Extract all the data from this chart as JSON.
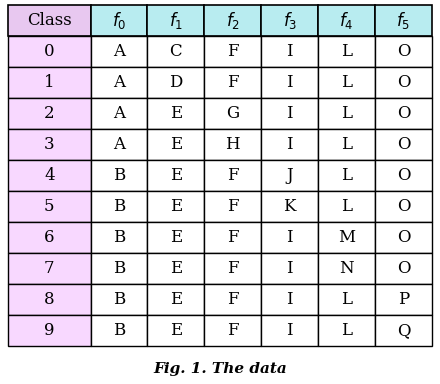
{
  "col_labels_display": [
    "Class",
    "$f_0$",
    "$f_1$",
    "$f_2$",
    "$f_3$",
    "$f_4$",
    "$f_5$"
  ],
  "rows": [
    [
      "0",
      "A",
      "C",
      "F",
      "I",
      "L",
      "O"
    ],
    [
      "1",
      "A",
      "D",
      "F",
      "I",
      "L",
      "O"
    ],
    [
      "2",
      "A",
      "E",
      "G",
      "I",
      "L",
      "O"
    ],
    [
      "3",
      "A",
      "E",
      "H",
      "I",
      "L",
      "O"
    ],
    [
      "4",
      "B",
      "E",
      "F",
      "J",
      "L",
      "O"
    ],
    [
      "5",
      "B",
      "E",
      "F",
      "K",
      "L",
      "O"
    ],
    [
      "6",
      "B",
      "E",
      "F",
      "I",
      "M",
      "O"
    ],
    [
      "7",
      "B",
      "E",
      "F",
      "I",
      "N",
      "O"
    ],
    [
      "8",
      "B",
      "E",
      "F",
      "I",
      "L",
      "P"
    ],
    [
      "9",
      "B",
      "E",
      "F",
      "I",
      "L",
      "Q"
    ]
  ],
  "header_color_class": "#e8c8f0",
  "header_color_features": "#b8ecf0",
  "cell_color_class": "#f8d8ff",
  "cell_color_features": "#ffffff",
  "border_color": "#000000",
  "header_fontsize": 12,
  "cell_fontsize": 12,
  "caption": "Fig. 1. The data",
  "caption_fontsize": 11,
  "fig_width": 4.4,
  "fig_height": 3.84,
  "col_widths_rel": [
    1.45,
    1.0,
    1.0,
    1.0,
    1.0,
    1.0,
    1.0
  ]
}
